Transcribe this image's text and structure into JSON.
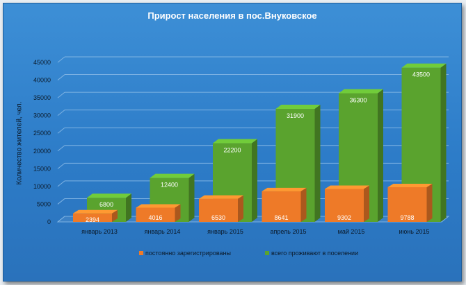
{
  "chart_data": {
    "type": "bar",
    "title": "Прирост населения в пос.Внуковское",
    "ylabel": "Количество жителей, чел.",
    "xlabel": "",
    "ylim": [
      0,
      45000
    ],
    "yticks": [
      0,
      5000,
      10000,
      15000,
      20000,
      25000,
      30000,
      35000,
      40000,
      45000
    ],
    "categories": [
      "январь 2013",
      "январь 2014",
      "январь 2015",
      "апрель 2015",
      "май 2015",
      "июнь 2015"
    ],
    "series": [
      {
        "name": "постоянно зарегистрированы",
        "values": [
          2394,
          4016,
          6530,
          8641,
          9302,
          9788
        ],
        "color": "#ee7a28"
      },
      {
        "name": "всего проживают в поселении",
        "values": [
          6800,
          12400,
          22200,
          31900,
          36300,
          43500
        ],
        "color": "#5aa32e"
      }
    ],
    "grid": true,
    "legend_position": "bottom"
  }
}
